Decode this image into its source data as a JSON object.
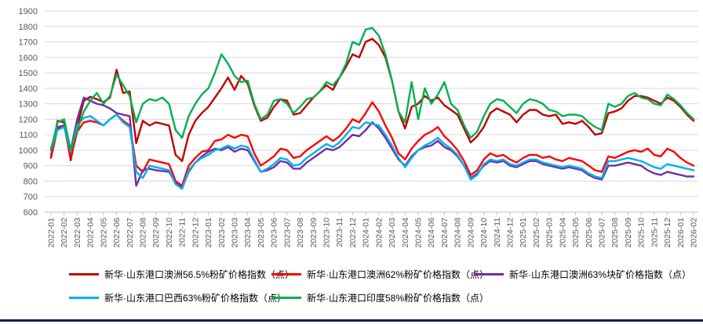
{
  "page": {
    "background": "#ffffff",
    "bottom_bar_color": "#181852",
    "axis_color": "#bfbfbf",
    "grid_color": "#d9d9d9",
    "tick_label_color": "#595959"
  },
  "chart_data": {
    "type": "line",
    "title": "",
    "xlabel": "",
    "ylabel": "",
    "ylim": [
      600,
      1900
    ],
    "grid": true,
    "legend_position": "bottom",
    "samples_per_month": 2,
    "y_ticks": [
      1900,
      1800,
      1700,
      1600,
      1500,
      1400,
      1300,
      1200,
      1100,
      1000,
      900,
      800,
      700,
      600
    ],
    "x_labels": [
      "2022-01",
      "2022-02",
      "2022-03",
      "2022-04",
      "2022-05",
      "2022-06",
      "2022-07",
      "2022-08",
      "2022-09",
      "2022-10",
      "2022-11",
      "2022-12",
      "2023-01",
      "2023-02",
      "2023-03",
      "2023-04",
      "2023-05",
      "2023-06",
      "2023-07",
      "2023-08",
      "2023-09",
      "2023-10",
      "2023-11",
      "2023-12",
      "2024-01",
      "2024-02",
      "2024-03",
      "2024-04",
      "2024-05",
      "2024-06",
      "2024-07",
      "2024-08",
      "2024-09",
      "2024-10",
      "2024-11",
      "2024-12",
      "2025-01",
      "2025-02",
      "2025-03",
      "2025-04",
      "2025-05",
      "2025-06",
      "2025-07",
      "2025-08",
      "2025-09",
      "2025-10",
      "2025-11",
      "2025-12",
      "2026-01",
      "2026-02"
    ],
    "series": [
      {
        "name": "新华·山东港口澳洲56.5%粉矿价格指数（点）",
        "color": "#C00000",
        "values": [
          960,
          1190,
          1180,
          935,
          1150,
          1320,
          1345,
          1330,
          1310,
          1340,
          1520,
          1370,
          1380,
          1045,
          1190,
          1160,
          1180,
          1170,
          1160,
          970,
          930,
          1100,
          1190,
          1240,
          1280,
          1340,
          1400,
          1470,
          1390,
          1480,
          1430,
          1290,
          1190,
          1210,
          1280,
          1330,
          1320,
          1230,
          1240,
          1290,
          1340,
          1380,
          1420,
          1390,
          1470,
          1540,
          1620,
          1600,
          1700,
          1720,
          1680,
          1600,
          1450,
          1250,
          1140,
          1280,
          1300,
          1350,
          1320,
          1340,
          1290,
          1260,
          1230,
          1140,
          1050,
          1090,
          1150,
          1240,
          1270,
          1250,
          1230,
          1180,
          1230,
          1260,
          1260,
          1230,
          1220,
          1230,
          1170,
          1180,
          1170,
          1190,
          1150,
          1100,
          1110,
          1240,
          1250,
          1270,
          1320,
          1350,
          1350,
          1340,
          1320,
          1300,
          1340,
          1320,
          1280,
          1230,
          1190
        ]
      },
      {
        "name": "新华·山东港口澳洲62%粉矿价格指数（点）",
        "color": "#FF0000",
        "values": [
          950,
          1140,
          1160,
          950,
          1120,
          1180,
          1190,
          1180,
          1160,
          1200,
          1230,
          1190,
          1160,
          900,
          860,
          940,
          930,
          920,
          910,
          800,
          770,
          900,
          950,
          990,
          1000,
          1060,
          1070,
          1100,
          1080,
          1100,
          1090,
          980,
          900,
          930,
          960,
          1010,
          1000,
          950,
          960,
          1000,
          1030,
          1060,
          1090,
          1060,
          1090,
          1140,
          1200,
          1180,
          1240,
          1310,
          1250,
          1160,
          1080,
          980,
          940,
          1010,
          1060,
          1100,
          1120,
          1150,
          1090,
          1050,
          1000,
          930,
          840,
          870,
          940,
          980,
          960,
          970,
          940,
          920,
          950,
          970,
          970,
          950,
          960,
          940,
          930,
          950,
          940,
          930,
          900,
          870,
          860,
          960,
          950,
          970,
          990,
          1000,
          990,
          1010,
          970,
          960,
          1010,
          990,
          950,
          920,
          900
        ]
      },
      {
        "name": "新华·山东港口澳洲63%块矿价格指数（点）",
        "color": "#7030A0",
        "values": [
          1010,
          1150,
          1160,
          1000,
          1200,
          1340,
          1320,
          1300,
          1290,
          1270,
          1240,
          1230,
          1220,
          770,
          870,
          880,
          870,
          865,
          860,
          790,
          755,
          860,
          920,
          960,
          990,
          1010,
          1000,
          1020,
          990,
          1010,
          1000,
          930,
          860,
          870,
          890,
          930,
          920,
          880,
          880,
          920,
          950,
          980,
          1010,
          1000,
          1020,
          1060,
          1100,
          1090,
          1130,
          1180,
          1140,
          1080,
          1010,
          940,
          900,
          960,
          1000,
          1020,
          1030,
          1060,
          1020,
          1000,
          960,
          900,
          820,
          850,
          900,
          930,
          920,
          930,
          900,
          890,
          910,
          930,
          930,
          910,
          900,
          890,
          880,
          890,
          880,
          870,
          840,
          820,
          810,
          900,
          900,
          910,
          920,
          910,
          900,
          870,
          850,
          840,
          860,
          850,
          840,
          830,
          830
        ]
      },
      {
        "name": "新华·山东港口巴西63%粉矿价格指数（点）",
        "color": "#00B0F0",
        "values": [
          1000,
          1130,
          1150,
          990,
          1160,
          1210,
          1220,
          1190,
          1160,
          1200,
          1230,
          1180,
          1150,
          860,
          820,
          900,
          890,
          880,
          870,
          780,
          750,
          870,
          920,
          950,
          970,
          1000,
          1010,
          1030,
          1010,
          1030,
          1020,
          940,
          860,
          880,
          910,
          950,
          940,
          900,
          910,
          950,
          980,
          1010,
          1040,
          1020,
          1050,
          1100,
          1150,
          1140,
          1180,
          1170,
          1160,
          1100,
          1030,
          950,
          890,
          950,
          1000,
          1030,
          1050,
          1080,
          1040,
          1010,
          970,
          900,
          810,
          840,
          910,
          940,
          930,
          940,
          910,
          900,
          920,
          940,
          940,
          920,
          910,
          900,
          890,
          900,
          890,
          880,
          850,
          830,
          820,
          930,
          930,
          940,
          950,
          940,
          930,
          910,
          890,
          880,
          910,
          900,
          890,
          880,
          870
        ]
      },
      {
        "name": "新华·山东港口印度58%粉矿价格指数（点）",
        "color": "#00B050",
        "values": [
          1000,
          1180,
          1200,
          1000,
          1130,
          1250,
          1320,
          1370,
          1300,
          1350,
          1490,
          1420,
          1350,
          1180,
          1300,
          1330,
          1320,
          1340,
          1300,
          1130,
          1080,
          1220,
          1300,
          1360,
          1400,
          1500,
          1620,
          1560,
          1480,
          1440,
          1450,
          1300,
          1200,
          1230,
          1320,
          1330,
          1300,
          1240,
          1280,
          1330,
          1340,
          1380,
          1440,
          1420,
          1470,
          1560,
          1700,
          1680,
          1780,
          1790,
          1740,
          1620,
          1450,
          1250,
          1180,
          1440,
          1200,
          1400,
          1300,
          1360,
          1440,
          1300,
          1260,
          1160,
          1080,
          1120,
          1220,
          1300,
          1330,
          1320,
          1280,
          1240,
          1300,
          1330,
          1320,
          1300,
          1260,
          1250,
          1220,
          1230,
          1230,
          1220,
          1180,
          1150,
          1130,
          1300,
          1280,
          1300,
          1350,
          1370,
          1340,
          1330,
          1300,
          1290,
          1360,
          1330,
          1290,
          1240,
          1200
        ]
      }
    ],
    "legend_rows": [
      3,
      2
    ]
  }
}
